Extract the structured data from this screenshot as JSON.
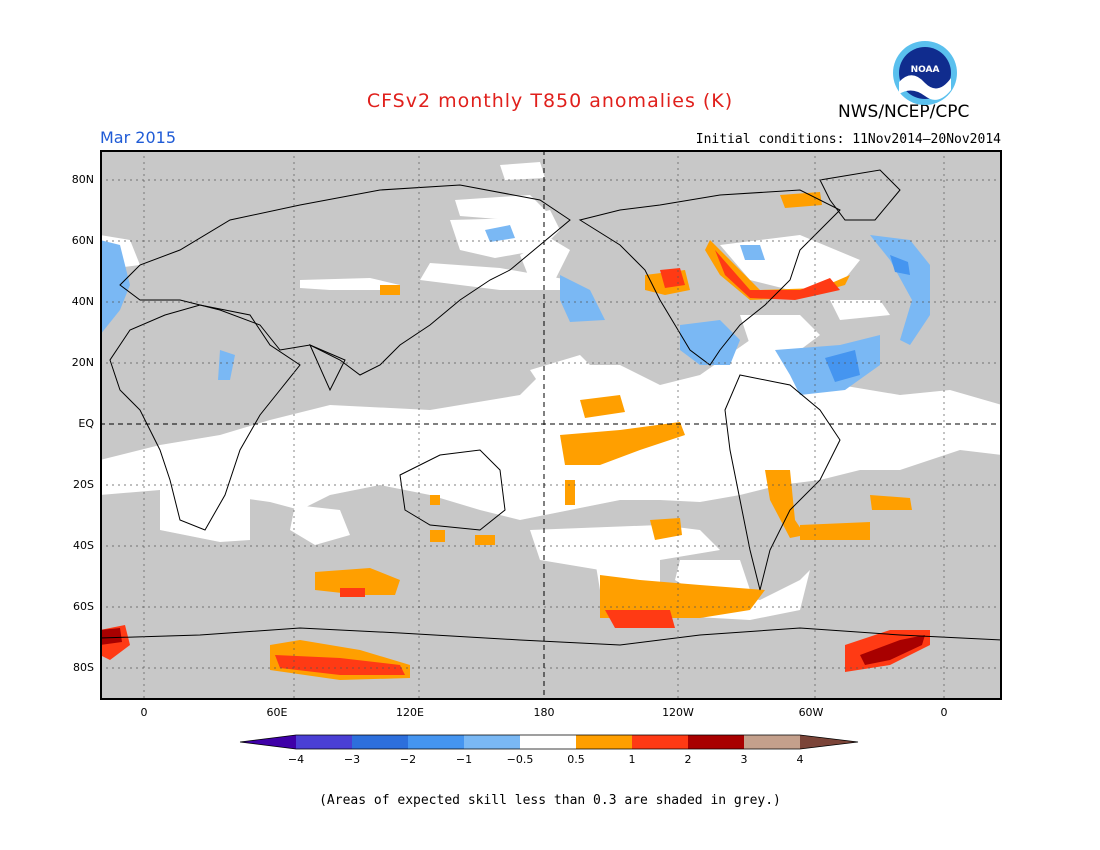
{
  "title": "CFSv2 monthly T850 anomalies (K)",
  "month": "Mar 2015",
  "initial_conditions": "Initial conditions: 11Nov2014–20Nov2014",
  "agency": "NWS/NCEP/CPC",
  "logo_text": "NOAA",
  "note": "(Areas of expected skill less than 0.3 are shaded in grey.)",
  "lat_labels": [
    "80N",
    "60N",
    "40N",
    "20N",
    "EQ",
    "20S",
    "40S",
    "60S",
    "80S"
  ],
  "lon_labels": [
    "0",
    "60E",
    "120E",
    "180",
    "120W",
    "60W",
    "0"
  ],
  "colorbar": {
    "labels": [
      "−4",
      "−3",
      "−2",
      "−1",
      "−0.5",
      "0.5",
      "1",
      "2",
      "3",
      "4"
    ],
    "colors": [
      "#3f00a8",
      "#4a3fd4",
      "#2d6fdc",
      "#4595f0",
      "#7ab8f4",
      "#ffffff",
      "#ff9f00",
      "#ff3a14",
      "#a80000",
      "#c4a08c",
      "#7b4438"
    ]
  },
  "colors": {
    "grey": "#c8c8c8",
    "land_outline": "#000000",
    "title": "#e0201c",
    "month": "#1f5bd6"
  }
}
